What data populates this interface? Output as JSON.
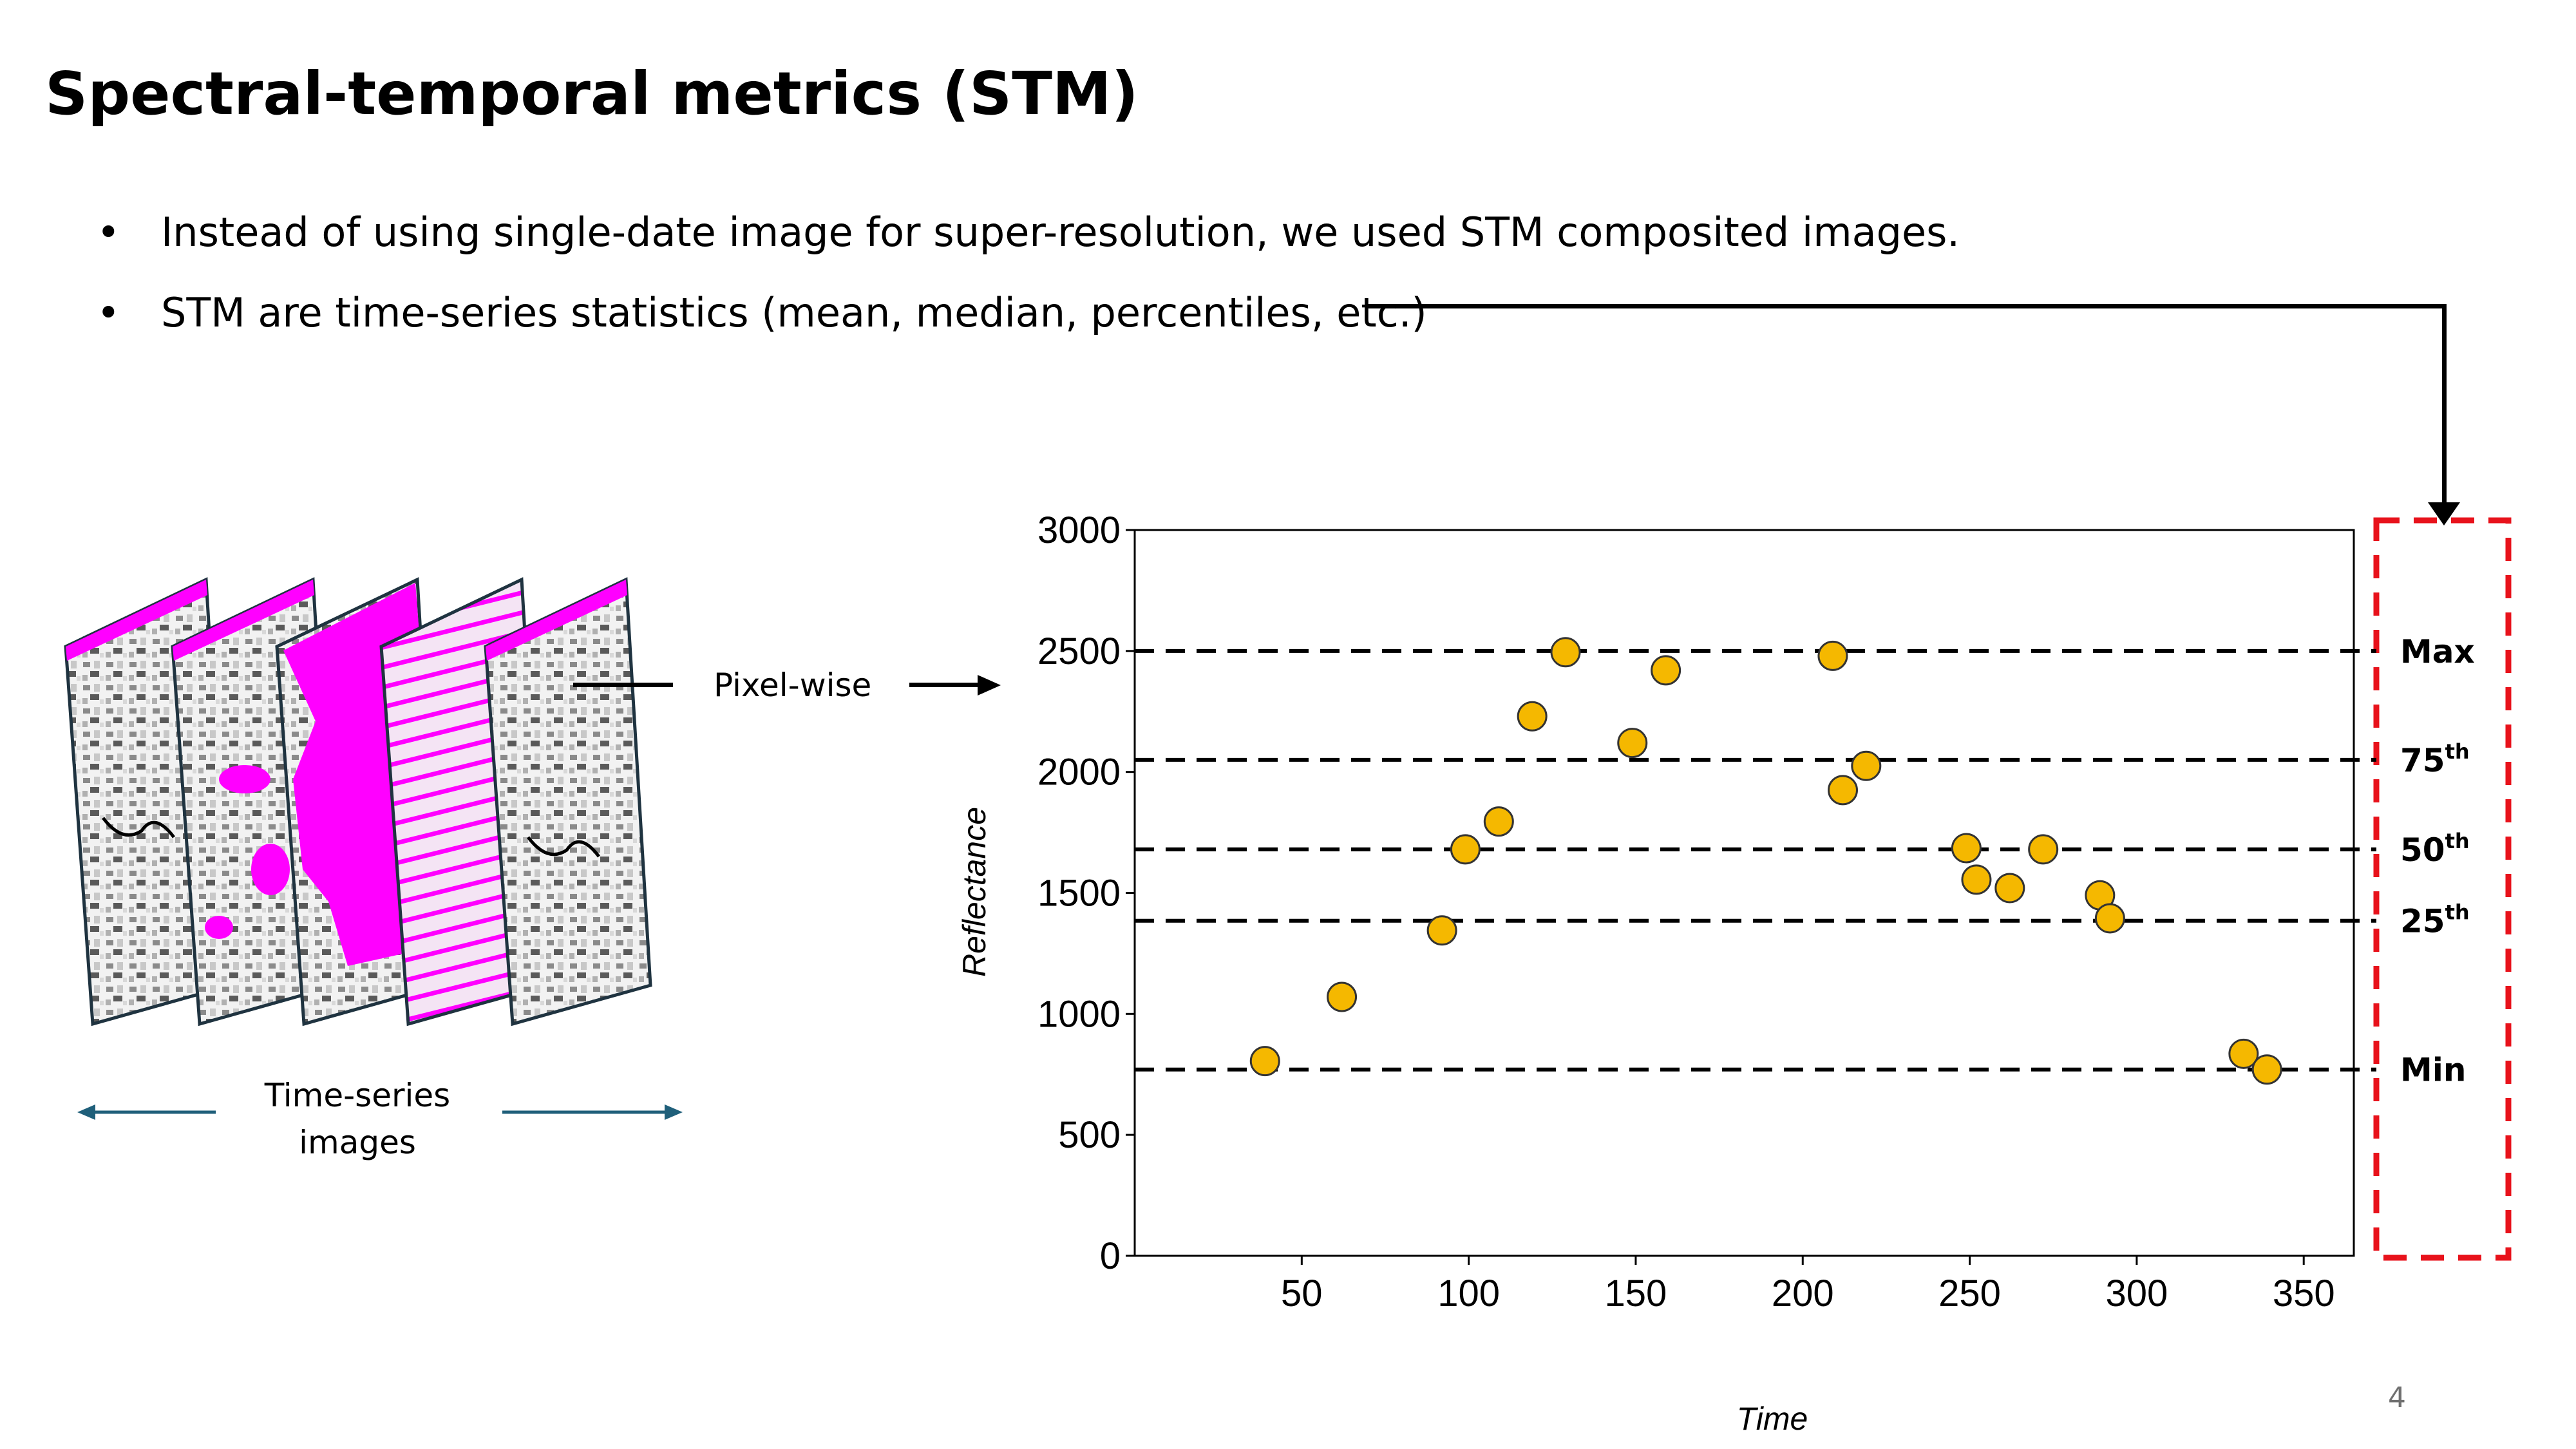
{
  "slide": {
    "title": "Spectral-temporal metrics (STM)",
    "bullets": [
      "Instead of using single-date image for super-resolution, we used STM composited images.",
      "STM are time-series statistics (mean, median, percentiles, etc.)"
    ],
    "bullet_symbol": "•",
    "page_number": "4"
  },
  "diagram": {
    "pixelwise_label": "Pixel-wise",
    "timeseries_label_line1": "Time-series",
    "timeseries_label_line2": "images",
    "colors": {
      "cloud_mask": "#ff00ff",
      "arrow": "#1f5f7a",
      "frame": "#1f3340"
    }
  },
  "chart_data": {
    "type": "scatter",
    "title": "",
    "xlabel": "Time",
    "ylabel": "Reflectance",
    "xlim": [
      0,
      365
    ],
    "ylim": [
      0,
      3000
    ],
    "x_ticks": [
      50,
      100,
      150,
      200,
      250,
      300,
      350
    ],
    "y_ticks": [
      0,
      500,
      1000,
      1500,
      2000,
      2500,
      3000
    ],
    "points": [
      {
        "x": 39,
        "y": 805
      },
      {
        "x": 62,
        "y": 1070
      },
      {
        "x": 92,
        "y": 1345
      },
      {
        "x": 99,
        "y": 1680
      },
      {
        "x": 109,
        "y": 1795
      },
      {
        "x": 119,
        "y": 2230
      },
      {
        "x": 129,
        "y": 2495
      },
      {
        "x": 149,
        "y": 2120
      },
      {
        "x": 159,
        "y": 2420
      },
      {
        "x": 209,
        "y": 2480
      },
      {
        "x": 212,
        "y": 1925
      },
      {
        "x": 219,
        "y": 2025
      },
      {
        "x": 249,
        "y": 1685
      },
      {
        "x": 252,
        "y": 1555
      },
      {
        "x": 262,
        "y": 1520
      },
      {
        "x": 272,
        "y": 1680
      },
      {
        "x": 289,
        "y": 1490
      },
      {
        "x": 292,
        "y": 1395
      },
      {
        "x": 332,
        "y": 835
      },
      {
        "x": 339,
        "y": 770
      }
    ],
    "stm_lines": [
      {
        "label": "Max",
        "y": 2500
      },
      {
        "label": "75",
        "sup": "th",
        "y": 2050
      },
      {
        "label": "50",
        "sup": "th",
        "y": 1680
      },
      {
        "label": "25",
        "sup": "th",
        "y": 1385
      },
      {
        "label": "Min",
        "y": 770
      }
    ],
    "colors": {
      "point_fill": "#f5b800",
      "point_edge": "#333333",
      "highlight_box": "#e8121b"
    }
  }
}
